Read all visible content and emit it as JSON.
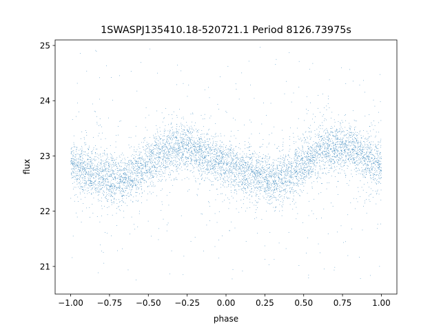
{
  "chart_data": {
    "type": "scatter",
    "title": "1SWASPJ135410.18-520721.1 Period 8126.73975s",
    "xlabel": "phase",
    "ylabel": "flux",
    "xlim": [
      -1.1,
      1.1
    ],
    "ylim": [
      20.5,
      25.1
    ],
    "xticks": [
      -1.0,
      -0.75,
      -0.5,
      -0.25,
      0.0,
      0.25,
      0.5,
      0.75,
      1.0
    ],
    "xtick_labels": [
      "−1.00",
      "−0.75",
      "−0.50",
      "−0.25",
      "0.00",
      "0.25",
      "0.50",
      "0.75",
      "1.00"
    ],
    "yticks": [
      21,
      22,
      23,
      24,
      25
    ],
    "ytick_labels": [
      "21",
      "22",
      "23",
      "24",
      "25"
    ],
    "grid": false,
    "marker_color": "#1f77b4",
    "series": [
      {
        "values_are_trend": true,
        "x": [
          -1.0,
          -0.875,
          -0.75,
          -0.7,
          -0.625,
          -0.5,
          -0.375,
          -0.3,
          -0.25,
          -0.125,
          0.0,
          0.125,
          0.25,
          0.3,
          0.375,
          0.5,
          0.625,
          0.75,
          0.8,
          0.875,
          1.0
        ],
        "y": [
          22.85,
          22.7,
          22.6,
          22.55,
          22.62,
          22.85,
          23.1,
          23.18,
          23.15,
          23.0,
          22.85,
          22.7,
          22.6,
          22.55,
          22.62,
          22.85,
          23.1,
          23.18,
          23.15,
          23.0,
          22.85
        ]
      }
    ]
  }
}
